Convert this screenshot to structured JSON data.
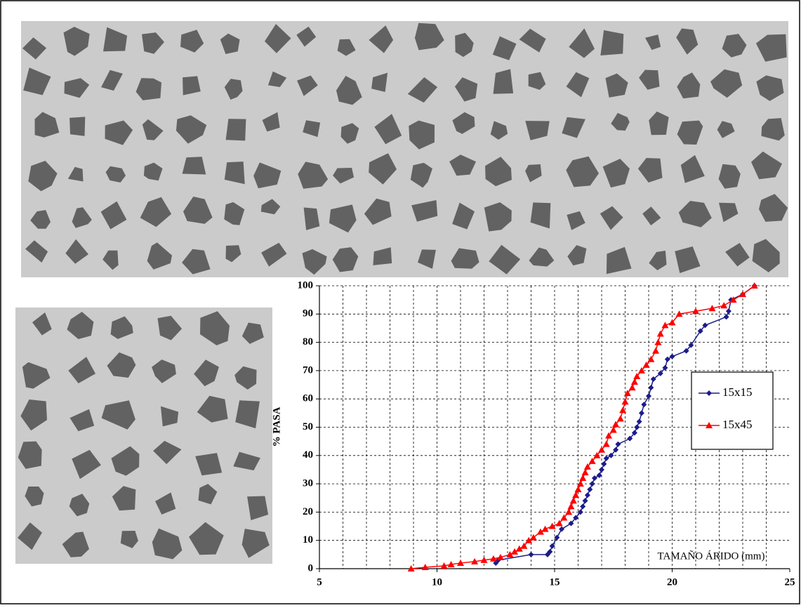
{
  "chart_data": {
    "type": "line",
    "y_label": "% PASA",
    "annotation": "TAMAÑO ÁRIDO (mm)",
    "xlim": [
      5,
      25
    ],
    "xticks": [
      5,
      10,
      15,
      20,
      25
    ],
    "x_gridlines": [
      6,
      7,
      8,
      9,
      10,
      11,
      12,
      13,
      14,
      15,
      16,
      17,
      18,
      19,
      20,
      21,
      22,
      23,
      24
    ],
    "ylim": [
      0,
      100
    ],
    "yticks": [
      0,
      10,
      20,
      30,
      40,
      50,
      60,
      70,
      80,
      90,
      100
    ],
    "grid": true,
    "legend": "right",
    "series": [
      {
        "name": "15x15",
        "color": "#1c1c8a",
        "marker": "diamond",
        "x": [
          12.5,
          12.6,
          14.0,
          14.7,
          14.8,
          14.9,
          15.1,
          15.3,
          15.7,
          15.9,
          16.1,
          16.2,
          16.3,
          16.4,
          16.5,
          16.6,
          16.7,
          16.9,
          17.0,
          17.1,
          17.2,
          17.4,
          17.6,
          17.7,
          18.2,
          18.4,
          18.5,
          18.6,
          18.7,
          18.8,
          19.0,
          19.1,
          19.2,
          19.5,
          19.7,
          19.8,
          20.0,
          20.6,
          20.8,
          21.2,
          21.4,
          22.3,
          22.4,
          22.5,
          23.0,
          23.5
        ],
        "values": [
          2,
          3,
          5,
          5,
          6,
          8,
          11,
          14,
          16,
          18,
          20,
          22,
          24,
          26,
          28,
          30,
          32,
          33,
          35,
          37,
          39,
          40,
          42,
          44,
          46,
          48,
          50,
          52,
          55,
          58,
          61,
          64,
          67,
          69,
          71,
          74,
          75,
          77,
          79,
          84,
          86,
          89,
          91,
          95,
          97,
          100
        ]
      },
      {
        "name": "15x45",
        "color": "#ff0000",
        "marker": "triangle",
        "x": [
          8.9,
          9.5,
          10.3,
          10.6,
          11.0,
          11.6,
          12.0,
          12.4,
          12.7,
          13.1,
          13.3,
          13.5,
          13.7,
          13.9,
          14.1,
          14.4,
          14.6,
          14.9,
          15.2,
          15.4,
          15.6,
          15.7,
          15.8,
          15.9,
          16.0,
          16.1,
          16.2,
          16.3,
          16.4,
          16.6,
          16.8,
          17.0,
          17.2,
          17.3,
          17.5,
          17.6,
          17.8,
          17.9,
          18.0,
          18.1,
          18.3,
          18.4,
          18.5,
          18.7,
          18.9,
          19.1,
          19.3,
          19.4,
          19.5,
          19.7,
          20.0,
          20.3,
          21.0,
          21.7,
          22.2,
          22.6,
          23.0,
          23.5
        ],
        "values": [
          0,
          0.5,
          1,
          1.5,
          2,
          2.5,
          3,
          3.5,
          4,
          5,
          6,
          7,
          8,
          10,
          11,
          13,
          14,
          15,
          16,
          18,
          20,
          22,
          24,
          26,
          28,
          30,
          32,
          34,
          36,
          38,
          40,
          42,
          44,
          47,
          49,
          51,
          53,
          56,
          59,
          62,
          64,
          66,
          68,
          70,
          72,
          74,
          77,
          80,
          83,
          86,
          87,
          90,
          91,
          92,
          93,
          95,
          97,
          100
        ]
      }
    ]
  }
}
